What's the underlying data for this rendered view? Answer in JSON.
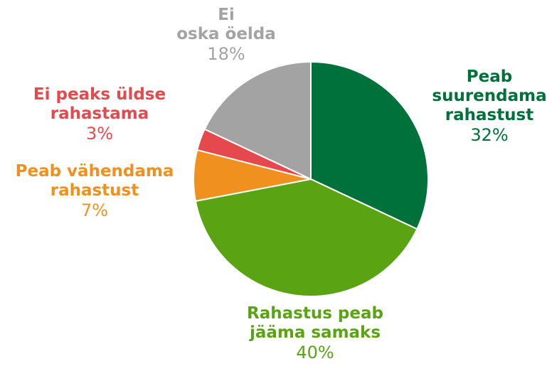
{
  "chart_data": {
    "type": "pie",
    "categories": [
      "Peab\nsuurendama\nrahastust",
      "Rahastus peab\njääma samaks",
      "Peab vähendama\nrahastust",
      "Ei peaks üldse\nrahastama",
      "Ei\noska öelda"
    ],
    "values": [
      32,
      40,
      7,
      3,
      18
    ],
    "value_labels": [
      "32%",
      "40%",
      "7%",
      "3%",
      "18%"
    ],
    "colors": [
      "#00713a",
      "#5aa313",
      "#f0901e",
      "#e5484d",
      "#a3a3a3"
    ]
  }
}
